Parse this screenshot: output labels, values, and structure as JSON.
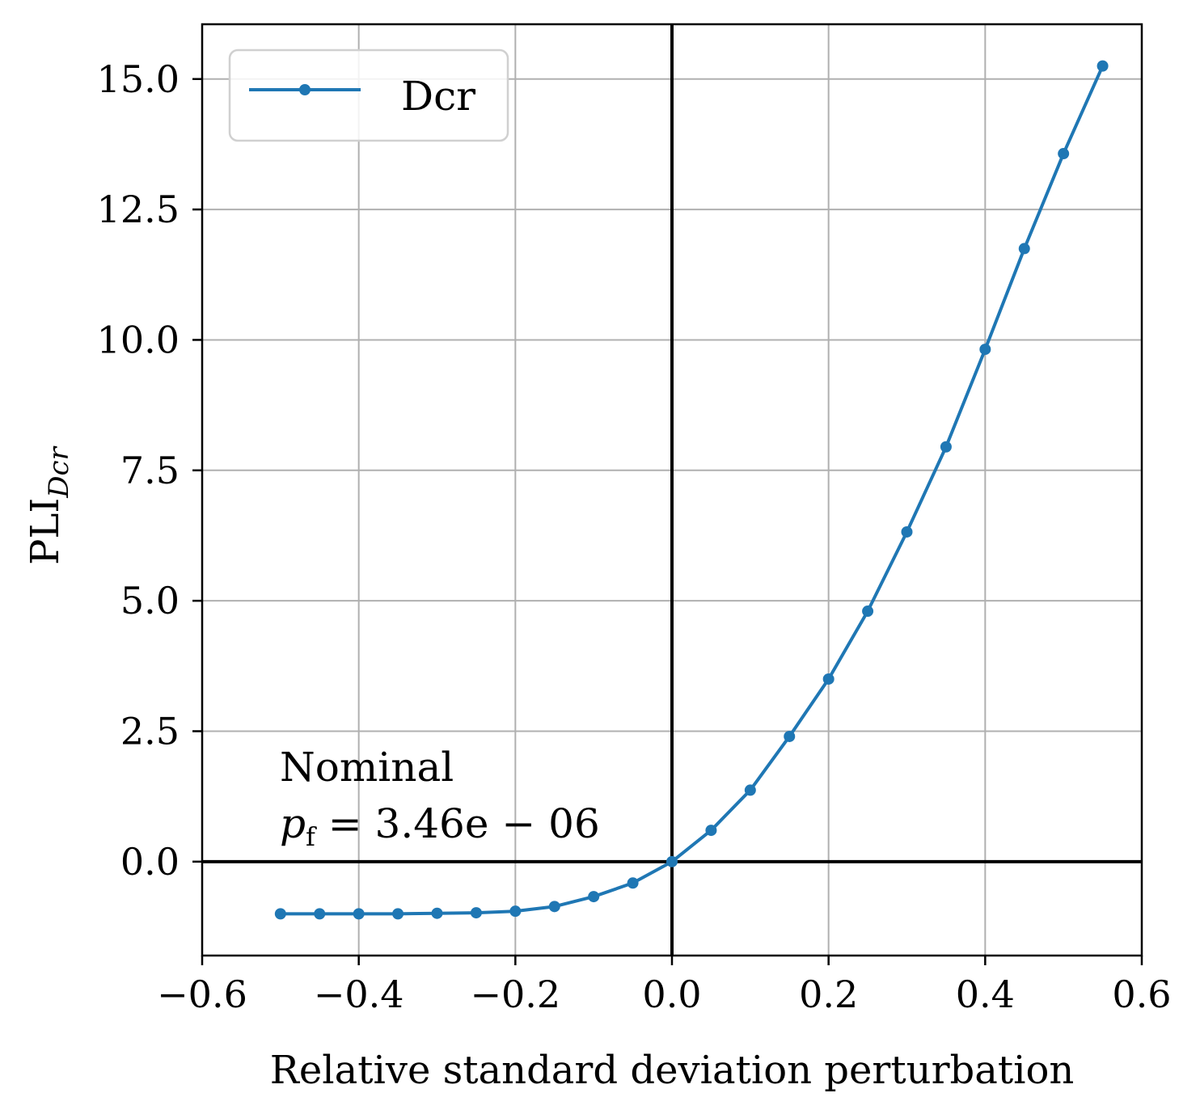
{
  "chart_data": {
    "type": "line",
    "xlabel": "Relative standard deviation perturbation",
    "ylabel": "PLI",
    "ylabel_sub": "Dcr",
    "xlim": [
      -0.6,
      0.6
    ],
    "ylim": [
      -1.8,
      16.05
    ],
    "grid": true,
    "legend_position": "top-left",
    "x_ticks": [
      -0.6,
      -0.4,
      -0.2,
      0.0,
      0.2,
      0.4,
      0.6
    ],
    "x_tick_labels": [
      "−0.6",
      "−0.4",
      "−0.2",
      "0.0",
      "0.2",
      "0.4",
      "0.6"
    ],
    "y_ticks": [
      0.0,
      2.5,
      5.0,
      7.5,
      10.0,
      12.5,
      15.0
    ],
    "y_tick_labels": [
      "0.0",
      "2.5",
      "5.0",
      "7.5",
      "10.0",
      "12.5",
      "15.0"
    ],
    "reference_lines": {
      "x": 0,
      "y": 0
    },
    "annotation": {
      "line1": "Nominal",
      "line2_prefix": "p",
      "line2_sub": "f",
      "line2_value": " = 3.46e − 06"
    },
    "series": [
      {
        "name": "Dcr",
        "color": "#1f77b4",
        "marker": "circle",
        "x": [
          -0.5,
          -0.45,
          -0.4,
          -0.35,
          -0.3,
          -0.25,
          -0.2,
          -0.15,
          -0.1,
          -0.05,
          0.0,
          0.05,
          0.1,
          0.15,
          0.2,
          0.25,
          0.3,
          0.35,
          0.4,
          0.45,
          0.5,
          0.55
        ],
        "y": [
          -1.0,
          -1.0,
          -1.0,
          -1.0,
          -0.99,
          -0.98,
          -0.95,
          -0.86,
          -0.67,
          -0.41,
          0.0,
          0.6,
          1.37,
          2.4,
          3.5,
          4.8,
          6.32,
          7.95,
          9.82,
          11.75,
          13.57,
          15.25
        ]
      }
    ]
  }
}
